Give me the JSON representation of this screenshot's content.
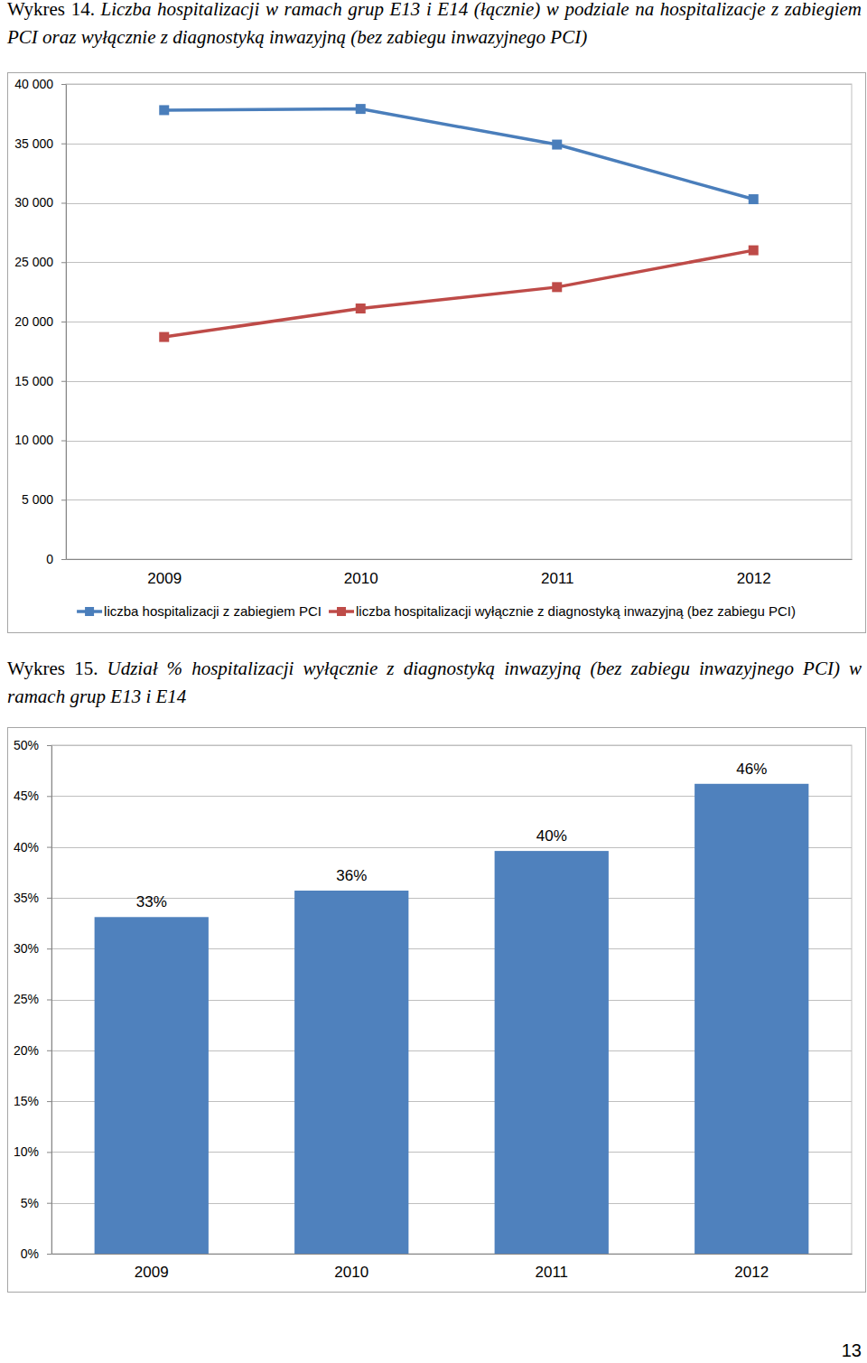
{
  "page_number": "13",
  "chart_data": [
    {
      "type": "line",
      "title": "Wykres 14. Liczba hospitalizacji w ramach grup E13 i E14 (łącznie) w podziale na hospitalizacje z zabiegiem PCI oraz wyłącznie z diagnostyką inwazyjną (bez zabiegu inwazyjnego PCI)",
      "categories": [
        "2009",
        "2010",
        "2011",
        "2012"
      ],
      "series": [
        {
          "name": "liczba hospitalizacji z zabiegiem PCI",
          "color": "#4a7ebb",
          "marker": "square",
          "values": [
            37800,
            37900,
            34900,
            30300
          ]
        },
        {
          "name": "liczba hospitalizacji wyłącznie z diagnostyką inwazyjną (bez zabiegu PCI)",
          "color": "#be4b48",
          "marker": "square",
          "values": [
            18700,
            21100,
            22900,
            26000
          ]
        }
      ],
      "ylim": [
        0,
        40000
      ],
      "yticks": [
        0,
        {
          "value": 5000,
          "label": "5 000"
        },
        {
          "value": 10000,
          "label": "10 000"
        },
        {
          "value": 15000,
          "label": "15 000"
        },
        {
          "value": 20000,
          "label": "20 000"
        },
        {
          "value": 25000,
          "label": "25 000"
        },
        {
          "value": 30000,
          "label": "30 000"
        },
        {
          "value": 35000,
          "label": "35 000"
        },
        {
          "value": 40000,
          "label": "40 000"
        }
      ],
      "grid": true,
      "legend": "bottom"
    },
    {
      "type": "bar",
      "title": "Wykres 15. Udział % hospitalizacji wyłącznie z diagnostyką inwazyjną (bez zabiegu inwazyjnego PCI) w ramach grup E13 i E14",
      "categories": [
        "2009",
        "2010",
        "2011",
        "2012"
      ],
      "values": [
        33.1,
        35.7,
        39.6,
        46.2
      ],
      "value_labels": [
        "33%",
        "36%",
        "40%",
        "46%"
      ],
      "color": "#4f81bd",
      "ylim": [
        0,
        50
      ],
      "yticks": [
        {
          "value": 0,
          "label": "0%"
        },
        {
          "value": 5,
          "label": "5%"
        },
        {
          "value": 10,
          "label": "10%"
        },
        {
          "value": 15,
          "label": "15%"
        },
        {
          "value": 20,
          "label": "20%"
        },
        {
          "value": 25,
          "label": "25%"
        },
        {
          "value": 30,
          "label": "30%"
        },
        {
          "value": 35,
          "label": "35%"
        },
        {
          "value": 40,
          "label": "40%"
        },
        {
          "value": 45,
          "label": "45%"
        },
        {
          "value": 50,
          "label": "50%"
        }
      ],
      "grid": true,
      "data_labels": true
    }
  ]
}
